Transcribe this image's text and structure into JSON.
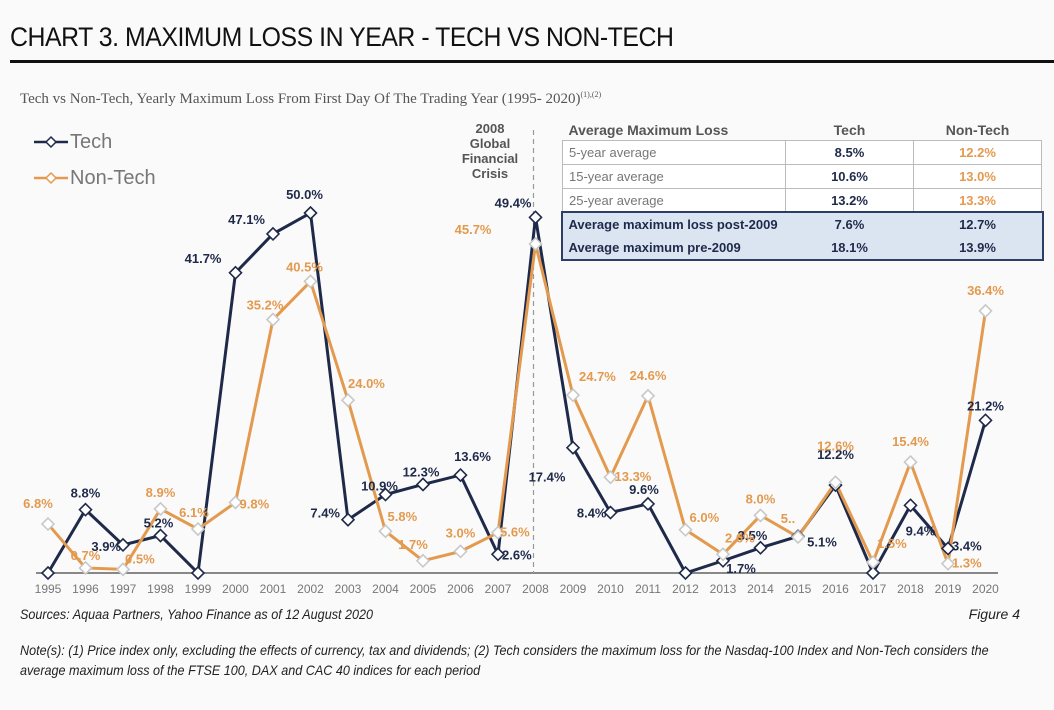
{
  "header": {
    "title": "CHART 3. MAXIMUM LOSS IN YEAR - TECH VS NON-TECH",
    "subtitle": "Tech vs Non-Tech, Yearly Maximum Loss From First Day Of The Trading Year (1995- 2020)",
    "subtitle_sup": "(1),(2)"
  },
  "annotation": {
    "line1": "2008",
    "line2": "Global",
    "line3": "Financial",
    "line4": "Crisis"
  },
  "summary_table": {
    "headers": [
      "Average Maximum Loss",
      "Tech",
      "Non-Tech"
    ],
    "rows": [
      {
        "label": "5-year average",
        "tech": "8.5%",
        "nontech": "12.2%"
      },
      {
        "label": "15-year average",
        "tech": "10.6%",
        "nontech": "13.0%"
      },
      {
        "label": "25-year average",
        "tech": "13.2%",
        "nontech": "13.3%"
      }
    ],
    "highlight_rows": [
      {
        "label": "Average maximum loss post-2009",
        "tech": "7.6%",
        "nontech": "12.7%"
      },
      {
        "label": "Average maximum pre-2009",
        "tech": "18.1%",
        "nontech": "13.9%"
      }
    ]
  },
  "footer": {
    "sources": "Sources: Aquaa Partners, Yahoo Finance as of 12 August 2020",
    "figure": "Figure 4",
    "note": "Note(s): (1) Price index only, excluding the effects of currency, tax and dividends; (2) Tech considers the maximum loss for the Nasdaq-100 Index and Non-Tech considers the average maximum loss of the FTSE 100, DAX and CAC 40 indices for each period"
  },
  "chart_data": {
    "type": "line",
    "title": "Tech vs Non-Tech, Yearly Maximum Loss From First Day Of The Trading Year (1995- 2020)",
    "xlabel": "",
    "ylabel": "",
    "ylim": [
      0,
      50
    ],
    "grid": false,
    "legend_position": "top-left",
    "categories": [
      "1995",
      "1996",
      "1997",
      "1998",
      "1999",
      "2000",
      "2001",
      "2002",
      "2003",
      "2004",
      "2005",
      "2006",
      "2007",
      "2008",
      "2009",
      "2010",
      "2011",
      "2012",
      "2013",
      "2014",
      "2015",
      "2016",
      "2017",
      "2018",
      "2019",
      "2020"
    ],
    "series": [
      {
        "name": "Tech",
        "color": "#1f2a4a",
        "values": [
          0,
          8.8,
          3.9,
          5.2,
          0,
          41.7,
          47.1,
          50.0,
          7.4,
          10.9,
          12.3,
          13.6,
          2.6,
          49.4,
          17.4,
          8.4,
          9.6,
          0,
          1.7,
          3.5,
          5.1,
          12.2,
          0,
          9.4,
          3.4,
          21.2
        ],
        "labels": [
          "",
          "8.8%",
          "3.9%",
          "5.2%",
          "",
          "41.7%",
          "47.1%",
          "50.0%",
          "7.4%",
          "10.9%",
          "12.3%",
          "13.6%",
          "2.6%",
          "49.4%",
          "17.4%",
          "8.4%",
          "9.6%",
          "",
          "1.7%",
          "3.5%",
          "5.1%",
          "12.2%",
          "",
          "9.4%",
          "3.4%",
          "21.2%"
        ]
      },
      {
        "name": "Non-Tech",
        "color": "#e39a4f",
        "values": [
          6.8,
          0.7,
          0.5,
          8.9,
          6.1,
          9.8,
          35.2,
          40.5,
          24.0,
          5.8,
          1.7,
          3.0,
          5.6,
          45.7,
          24.7,
          13.3,
          24.6,
          6.0,
          2.6,
          8.0,
          5.0,
          12.6,
          1.5,
          15.4,
          1.3,
          36.4
        ],
        "labels": [
          "6.8%",
          "0.7%",
          "0.5%",
          "8.9%",
          "6.1%",
          "9.8%",
          "35.2%",
          "40.5%",
          "24.0%",
          "5.8%",
          "1.7%",
          "3.0%",
          "5.6%",
          "45.7%",
          "24.7%",
          "13.3%",
          "24.6%",
          "6.0%",
          "2.6%",
          "8.0%",
          "5..",
          "12.6%",
          "1.5%",
          "15.4%",
          "1.3%",
          "36.4%"
        ]
      }
    ],
    "annotations": [
      "2008 Global Financial Crisis"
    ]
  }
}
